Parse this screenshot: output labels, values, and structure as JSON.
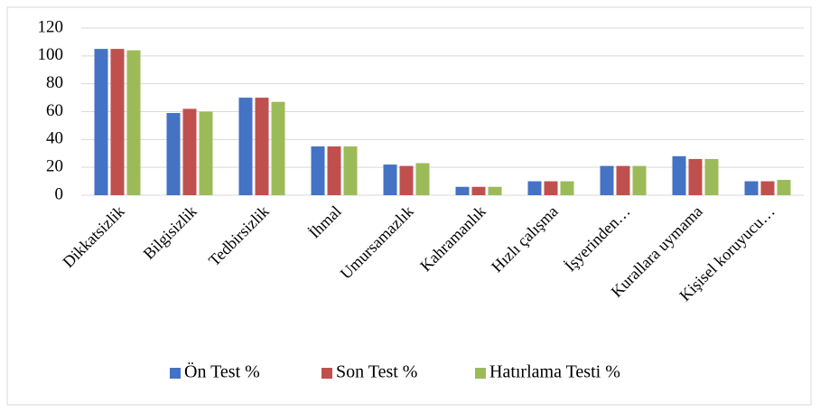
{
  "chart_data": {
    "type": "bar",
    "categories": [
      "Dikkatsizlik",
      "Bilgisizlik",
      "Tedbirsizlik",
      "İhmal",
      "Umursamazlık",
      "Kahramanlık",
      "Hızlı çalışma",
      "İşyerinden…",
      "Kurallara uymama",
      "Kişisel koruyucu…"
    ],
    "series": [
      {
        "name": "Ön Test %",
        "color": "#4472c4",
        "values": [
          105,
          59,
          70,
          35,
          22,
          6,
          10,
          21,
          28,
          10
        ]
      },
      {
        "name": "Son Test %",
        "color": "#c0504d",
        "values": [
          105,
          62,
          70,
          35,
          21,
          6,
          10,
          21,
          26,
          10
        ]
      },
      {
        "name": "Hatırlama Testi %",
        "color": "#9bbb59",
        "values": [
          104,
          60,
          67,
          35,
          23,
          6,
          10,
          21,
          26,
          11
        ]
      }
    ],
    "ylim": [
      0,
      120
    ],
    "yticks": [
      0,
      20,
      40,
      60,
      80,
      100,
      120
    ],
    "grid": true,
    "legend": "bottom"
  }
}
